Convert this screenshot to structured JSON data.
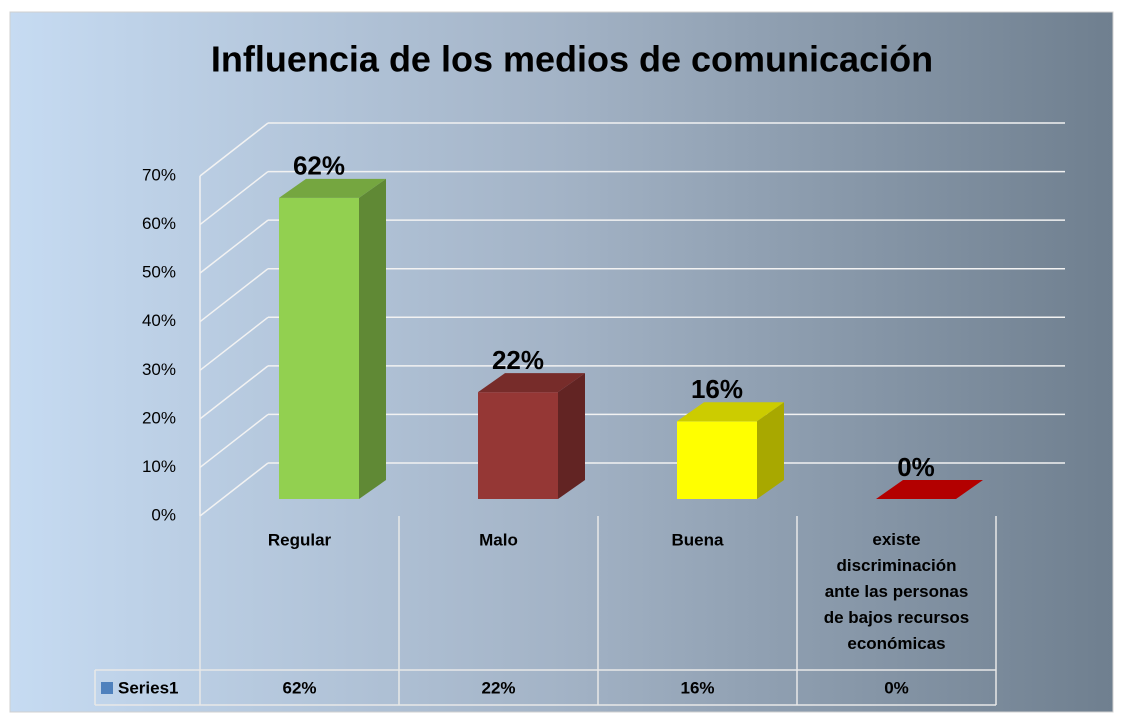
{
  "chart_data": {
    "type": "bar",
    "title": "Influencia de los medios de comunicación",
    "categories": [
      "Regular",
      "Malo",
      "Buena",
      "existe discriminación ante las personas de bajos recursos económicas"
    ],
    "series": [
      {
        "name": "Series1",
        "color": "#4f81bd",
        "colors": [
          "#92d050",
          "#953735",
          "#ffff00",
          "#e00000"
        ],
        "values": [
          62,
          22,
          16,
          0
        ],
        "value_labels": [
          "62%",
          "22%",
          "16%",
          "0%"
        ]
      }
    ],
    "ylim": [
      0,
      70
    ],
    "yticks": [
      {
        "value": 0,
        "label": "0%"
      },
      {
        "value": 10,
        "label": "10%"
      },
      {
        "value": 20,
        "label": "20%"
      },
      {
        "value": 30,
        "label": "30%"
      },
      {
        "value": 40,
        "label": "40%"
      },
      {
        "value": 50,
        "label": "50%"
      },
      {
        "value": 60,
        "label": "60%"
      },
      {
        "value": 70,
        "label": "70%"
      }
    ],
    "grid": true,
    "data_table": true
  }
}
